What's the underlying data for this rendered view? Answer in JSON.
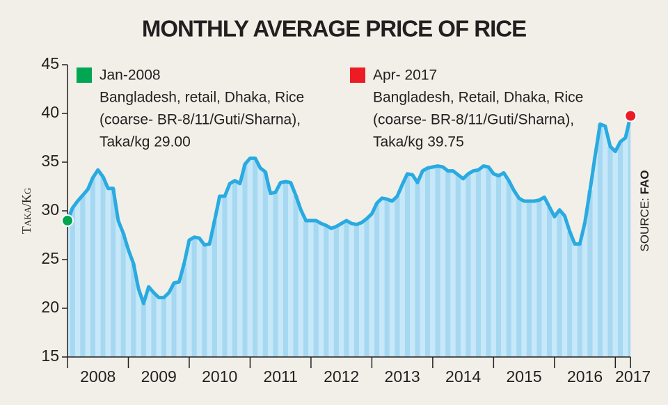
{
  "chart_data": {
    "type": "line",
    "title": "MONTHLY AVERAGE PRICE OF RICE",
    "y_label": "Taka/Kg",
    "source_label": "SOURCE:",
    "source_name": "FAO",
    "categories": [
      "2008",
      null,
      null,
      null,
      null,
      null,
      null,
      null,
      null,
      null,
      null,
      null,
      "2009",
      null,
      null,
      null,
      null,
      null,
      null,
      null,
      null,
      null,
      null,
      null,
      "2010",
      null,
      null,
      null,
      null,
      null,
      null,
      null,
      null,
      null,
      null,
      null,
      "2011",
      null,
      null,
      null,
      null,
      null,
      null,
      null,
      null,
      null,
      null,
      null,
      "2012",
      null,
      null,
      null,
      null,
      null,
      null,
      null,
      null,
      null,
      null,
      null,
      "2013",
      null,
      null,
      null,
      null,
      null,
      null,
      null,
      null,
      null,
      null,
      null,
      "2014",
      null,
      null,
      null,
      null,
      null,
      null,
      null,
      null,
      null,
      null,
      null,
      "2015",
      null,
      null,
      null,
      null,
      null,
      null,
      null,
      null,
      null,
      null,
      null,
      "2016",
      null,
      null,
      null,
      null,
      null,
      null,
      null,
      null,
      null,
      null,
      null,
      "2017",
      null,
      null,
      null
    ],
    "series": [
      {
        "color": "#29aae1",
        "values": [
          29,
          30.3,
          31,
          31.6,
          32.2,
          33.4,
          34.2,
          33.5,
          32.3,
          32.3,
          29.0,
          27.7,
          26.0,
          24.6,
          22.0,
          20.5,
          22.2,
          21.6,
          21.1,
          21.1,
          21.6,
          22.6,
          22.7,
          24.6,
          27.0,
          27.3,
          27.2,
          26.5,
          26.6,
          29.0,
          31.5,
          31.5,
          32.8,
          33.1,
          32.8,
          34.8,
          35.4,
          35.4,
          34.4,
          34.0,
          31.8,
          31.9,
          32.9,
          33.0,
          32.9,
          31.6,
          30.1,
          29.0,
          29.0,
          29.0,
          28.7,
          28.5,
          28.2,
          28.4,
          28.7,
          29.0,
          28.7,
          28.6,
          28.8,
          29.2,
          29.7,
          30.8,
          31.3,
          31.2,
          31.0,
          31.5,
          32.7,
          33.8,
          33.7,
          32.9,
          34.1,
          34.4,
          34.5,
          34.6,
          34.5,
          34.1,
          34.1,
          33.7,
          33.3,
          33.8,
          34.1,
          34.2,
          34.6,
          34.5,
          33.8,
          33.6,
          33.9,
          33.1,
          32.1,
          31.3,
          31.0,
          31.0,
          31.0,
          31.1,
          31.4,
          30.4,
          29.4,
          30.1,
          29.5,
          27.9,
          26.6,
          26.6,
          28.8,
          32.1,
          35.6,
          38.9,
          38.7,
          36.6,
          36.1,
          37.1,
          37.5,
          39.75
        ]
      }
    ],
    "ylim": [
      15,
      45
    ],
    "yticks": [
      15,
      20,
      25,
      30,
      35,
      40,
      45
    ],
    "annotations": [
      {
        "color": "#00a651",
        "lines": [
          "Jan-2008",
          "Bangladesh, retail, Dhaka, Rice",
          "(coarse- BR-8/11/Guti/Sharna),",
          "Taka/kg 29.00"
        ]
      },
      {
        "color": "#ed1c24",
        "lines": [
          "Apr- 2017",
          "Bangladesh, Retail, Dhaka, Rice",
          "(coarse- BR-8/11/Guti/Sharna),",
          "Taka/kg 39.75"
        ]
      }
    ]
  }
}
